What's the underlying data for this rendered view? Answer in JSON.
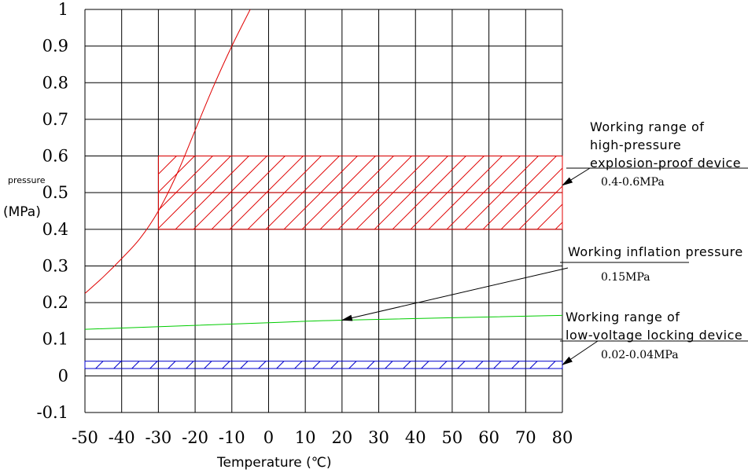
{
  "chart_data": {
    "type": "line",
    "xlabel": "Temperature (℃)",
    "ylabel_line1": "pressure",
    "ylabel_line2": "(MPa)",
    "xlim": [
      -50,
      80
    ],
    "ylim": [
      -0.1,
      1
    ],
    "x_ticks": [
      -50,
      -40,
      -30,
      -20,
      -10,
      0,
      10,
      20,
      30,
      40,
      50,
      60,
      70,
      80
    ],
    "y_ticks": [
      "1",
      "0.9",
      "0.8",
      "0.7",
      "0.6",
      "0.5",
      "0.4",
      "0.3",
      "0.2",
      "0.1",
      "0",
      "-0.1"
    ],
    "grid": true,
    "series": [
      {
        "color": "#e00000",
        "points": [
          [
            -50,
            0.225
          ],
          [
            -45,
            0.27
          ],
          [
            -40,
            0.32
          ],
          [
            -35,
            0.375
          ],
          [
            -30,
            0.45
          ],
          [
            -25,
            0.55
          ],
          [
            -20,
            0.67
          ],
          [
            -15,
            0.79
          ],
          [
            -10,
            0.9
          ],
          [
            -5,
            1.0
          ]
        ]
      },
      {
        "color": "#00cc00",
        "points": [
          [
            -50,
            0.127
          ],
          [
            0,
            0.145
          ],
          [
            20,
            0.152
          ],
          [
            80,
            0.165
          ]
        ]
      }
    ],
    "bands": [
      {
        "x_from": -30,
        "x_to": 80,
        "y_from": 0.4,
        "y_to": 0.6,
        "color": "#e00000",
        "hatched": true,
        "midline": 0.5
      },
      {
        "x_from": -50,
        "x_to": 80,
        "y_from": 0.02,
        "y_to": 0.04,
        "color": "#0000cc",
        "hatched": true
      }
    ],
    "annotations": [
      {
        "lines": [
          "Working range of",
          "high-pressure",
          "explosion-proof device"
        ],
        "value": "0.4-0.6MPa",
        "arrow_to": [
          80,
          0.52
        ]
      },
      {
        "lines": [
          "Working inflation pressure"
        ],
        "value": "0.15MPa",
        "arrow_to": [
          20,
          0.152
        ]
      },
      {
        "lines": [
          "Working range of",
          "low-voltage locking device"
        ],
        "value": "0.02-0.04MPa",
        "arrow_to": [
          80,
          0.03
        ]
      }
    ]
  }
}
